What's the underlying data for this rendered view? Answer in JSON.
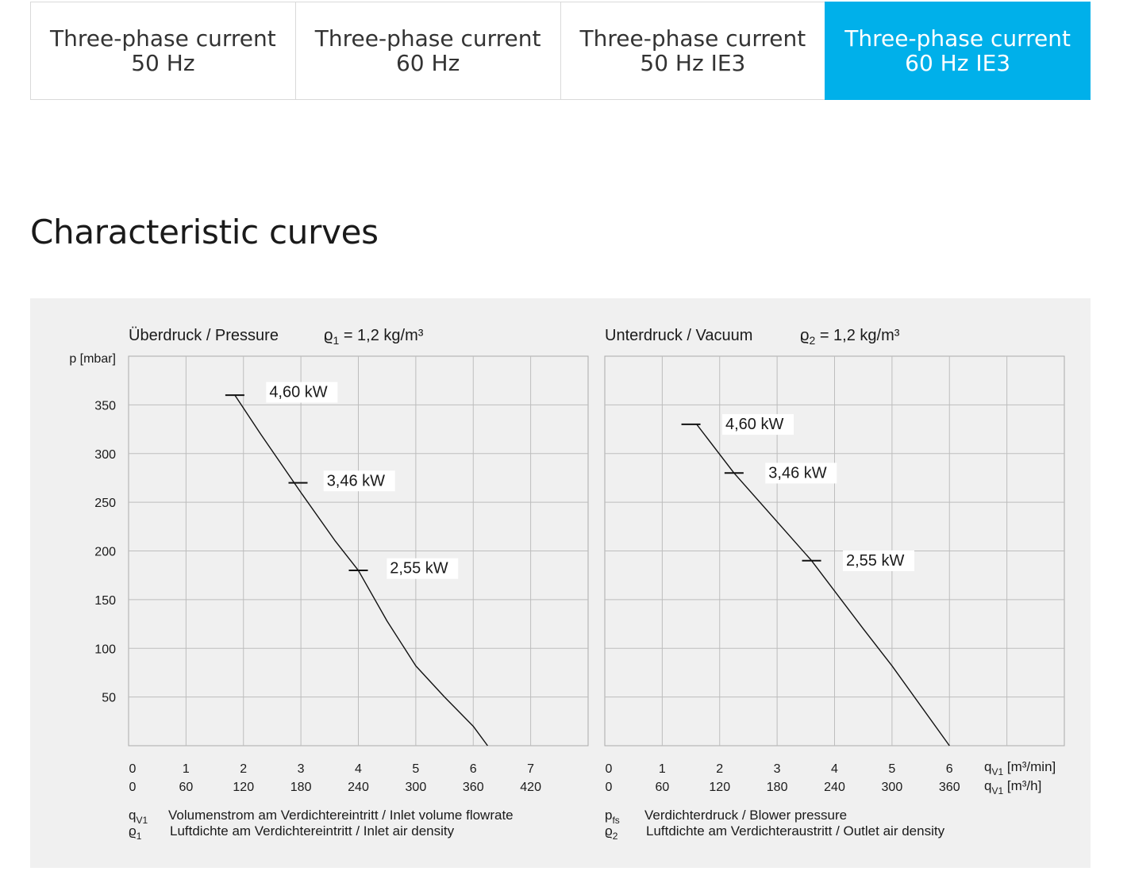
{
  "tabs": [
    {
      "line1": "Three-phase current",
      "line2": "50 Hz",
      "active": false
    },
    {
      "line1": "Three-phase current",
      "line2": "60 Hz",
      "active": false
    },
    {
      "line1": "Three-phase current",
      "line2": "50 Hz IE3",
      "active": false
    },
    {
      "line1": "Three-phase current",
      "line2": "60 Hz IE3",
      "active": true
    }
  ],
  "section_title": "Characteristic curves",
  "colors": {
    "accent": "#00b0ea",
    "panel": "#f0f0f0",
    "grid": "#bdbdbd"
  },
  "chart_data": [
    {
      "type": "line",
      "title": "Überdruck / Pressure",
      "density_label": "ϱ",
      "density_sub": "1",
      "density_value": "= 1,2 kg/m³",
      "ylabel": "p [mbar]",
      "ylim": [
        0,
        400
      ],
      "y_ticks": [
        50,
        100,
        150,
        200,
        250,
        300,
        350
      ],
      "xlim": [
        0,
        8
      ],
      "x_ticks_min": [
        0,
        1,
        2,
        3,
        4,
        5,
        6,
        7
      ],
      "x_ticks_h": [
        0,
        60,
        120,
        180,
        240,
        300,
        360,
        420
      ],
      "curve": [
        [
          1.85,
          360
        ],
        [
          2.3,
          320
        ],
        [
          3.0,
          260
        ],
        [
          3.6,
          210
        ],
        [
          4.0,
          180
        ],
        [
          4.5,
          128
        ],
        [
          5.0,
          82
        ],
        [
          5.5,
          50
        ],
        [
          6.0,
          20
        ],
        [
          6.25,
          0
        ]
      ],
      "markers": [
        {
          "x": 1.85,
          "y": 360,
          "label": "4,60 kW",
          "lx": 2.45,
          "ly": 358
        },
        {
          "x": 2.95,
          "y": 270,
          "label": "3,46 kW",
          "lx": 3.45,
          "ly": 267
        },
        {
          "x": 4.0,
          "y": 180,
          "label": "2,55 kW",
          "lx": 4.55,
          "ly": 177
        }
      ],
      "legend": [
        {
          "sym": "q",
          "sub": "V1",
          "text": "Volumenstrom am Verdichtereintritt / Inlet volume flowrate"
        },
        {
          "sym": "ϱ",
          "sub": "1",
          "text": "Luftdichte am Verdichtereintritt / Inlet air density"
        }
      ]
    },
    {
      "type": "line",
      "title": "Unterdruck / Vacuum",
      "density_label": "ϱ",
      "density_sub": "2",
      "density_value": "= 1,2 kg/m³",
      "ylim": [
        0,
        400
      ],
      "xlim": [
        0,
        8
      ],
      "x_ticks_min": [
        0,
        1,
        2,
        3,
        4,
        5,
        6
      ],
      "x_ticks_h": [
        0,
        60,
        120,
        180,
        240,
        300,
        360
      ],
      "x_unit_min": "[m³/min]",
      "x_unit_h": "[m³/h]",
      "x_unit_sym": "q",
      "x_unit_sub": "V1",
      "curve": [
        [
          1.6,
          330
        ],
        [
          2.25,
          280
        ],
        [
          3.6,
          190
        ],
        [
          4.5,
          120
        ],
        [
          5.0,
          82
        ],
        [
          6.0,
          0
        ]
      ],
      "markers": [
        {
          "x": 1.5,
          "y": 330,
          "label": "4,60 kW",
          "lx": 2.1,
          "ly": 325
        },
        {
          "x": 2.25,
          "y": 280,
          "label": "3,46 kW",
          "lx": 2.85,
          "ly": 275
        },
        {
          "x": 3.6,
          "y": 190,
          "label": "2,55 kW",
          "lx": 4.2,
          "ly": 185
        }
      ],
      "legend": [
        {
          "sym": "p",
          "sub": "fs",
          "text": "Verdichterdruck / Blower pressure"
        },
        {
          "sym": "ϱ",
          "sub": "2",
          "text": "Luftdichte am Verdichteraustritt / Outlet air density"
        }
      ]
    }
  ]
}
